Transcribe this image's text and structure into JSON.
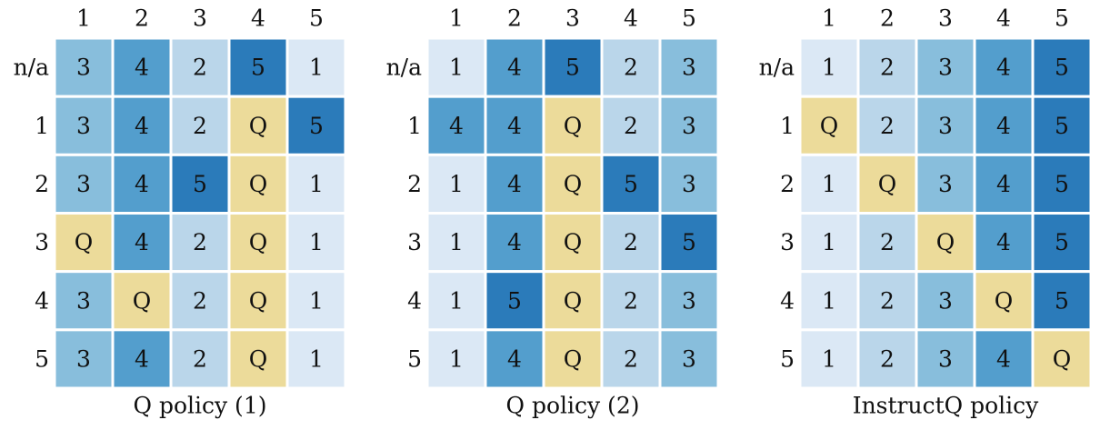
{
  "chart_data": [
    {
      "type": "heatmap",
      "title": "Q policy (1)",
      "x_categories": [
        1,
        2,
        3,
        4,
        5
      ],
      "y_categories": [
        "n/a",
        "1",
        "2",
        "3",
        "4",
        "5"
      ],
      "cells": [
        [
          3,
          4,
          2,
          5,
          1
        ],
        [
          3,
          4,
          2,
          "Q",
          5
        ],
        [
          3,
          4,
          5,
          "Q",
          1
        ],
        [
          "Q",
          4,
          2,
          "Q",
          1
        ],
        [
          3,
          "Q",
          2,
          "Q",
          1
        ],
        [
          3,
          4,
          2,
          "Q",
          1
        ]
      ],
      "colormap": [
        "#dbe8f5",
        "#bad6ea",
        "#88bedc",
        "#539ecd",
        "#2b7bba"
      ],
      "special_color": "#ecdb9a"
    },
    {
      "type": "heatmap",
      "title": "Q policy (2)",
      "x_categories": [
        1,
        2,
        3,
        4,
        5
      ],
      "y_categories": [
        "n/a",
        "1",
        "2",
        "3",
        "4",
        "5"
      ],
      "cells": [
        [
          1,
          4,
          5,
          2,
          3
        ],
        [
          4,
          4,
          "Q",
          2,
          3
        ],
        [
          1,
          4,
          "Q",
          5,
          3
        ],
        [
          1,
          4,
          "Q",
          2,
          5
        ],
        [
          1,
          5,
          "Q",
          2,
          3
        ],
        [
          1,
          4,
          "Q",
          2,
          3
        ]
      ],
      "colormap": [
        "#dbe8f5",
        "#bad6ea",
        "#88bedc",
        "#539ecd",
        "#2b7bba"
      ],
      "special_color": "#ecdb9a"
    },
    {
      "type": "heatmap",
      "title": "InstructQ policy",
      "x_categories": [
        1,
        2,
        3,
        4,
        5
      ],
      "y_categories": [
        "n/a",
        "1",
        "2",
        "3",
        "4",
        "5"
      ],
      "cells": [
        [
          1,
          2,
          3,
          4,
          5
        ],
        [
          "Q",
          2,
          3,
          4,
          5
        ],
        [
          1,
          "Q",
          3,
          4,
          5
        ],
        [
          1,
          2,
          "Q",
          4,
          5
        ],
        [
          1,
          2,
          3,
          "Q",
          5
        ],
        [
          1,
          2,
          3,
          4,
          "Q"
        ]
      ],
      "colormap": [
        "#dbe8f5",
        "#bad6ea",
        "#88bedc",
        "#539ecd",
        "#2b7bba"
      ],
      "special_color": "#ecdb9a"
    }
  ]
}
